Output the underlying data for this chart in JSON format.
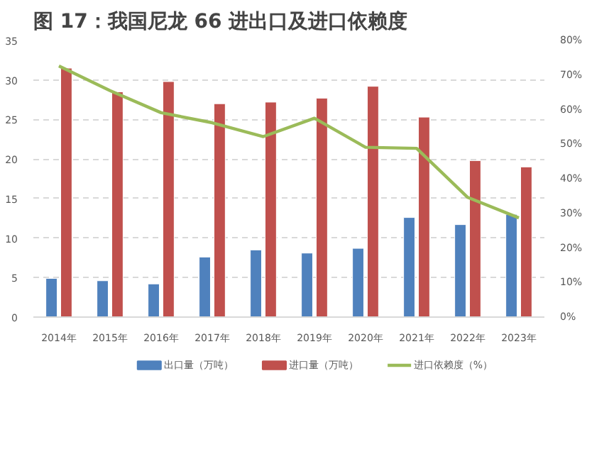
{
  "chart_data": {
    "type": "bar",
    "title": "图 17：我国尼龙 66 进出口及进口依赖度",
    "categories": [
      "2014年",
      "2015年",
      "2016年",
      "2017年",
      "2018年",
      "2019年",
      "2020年",
      "2021年",
      "2022年",
      "2023年"
    ],
    "series": [
      {
        "name": "出口量（万吨）",
        "color": "#4f81bd",
        "values": [
          4.9,
          4.6,
          4.2,
          7.6,
          8.5,
          8.1,
          8.7,
          12.6,
          11.7,
          13.0
        ]
      },
      {
        "name": "进口量（万吨）",
        "color": "#c0504d",
        "values": [
          31.5,
          28.5,
          29.8,
          27.0,
          27.2,
          27.7,
          29.2,
          25.3,
          19.8,
          19.0
        ]
      },
      {
        "name": "进口依赖度（%）",
        "color": "#9bbb59",
        "type": "line",
        "axis": "y2",
        "values": [
          72.6,
          65.5,
          59.1,
          56.2,
          52.2,
          57.5,
          49.1,
          48.8,
          34.6,
          28.7
        ]
      }
    ],
    "ylim": [
      0,
      35
    ],
    "yticks": [
      0,
      5,
      10,
      15,
      20,
      25,
      30,
      35
    ],
    "y2lim": [
      0,
      80
    ],
    "y2ticks": [
      {
        "value": 0,
        "label": "0%"
      },
      {
        "value": 10,
        "label": "10%"
      },
      {
        "value": 20,
        "label": "20%"
      },
      {
        "value": 30,
        "label": "30%"
      },
      {
        "value": 40,
        "label": "40%"
      },
      {
        "value": 50,
        "label": "50%"
      },
      {
        "value": 60,
        "label": "60%"
      },
      {
        "value": 70,
        "label": "70%"
      },
      {
        "value": 80,
        "label": "80%"
      }
    ],
    "grid": "y",
    "legend": "bottom"
  }
}
